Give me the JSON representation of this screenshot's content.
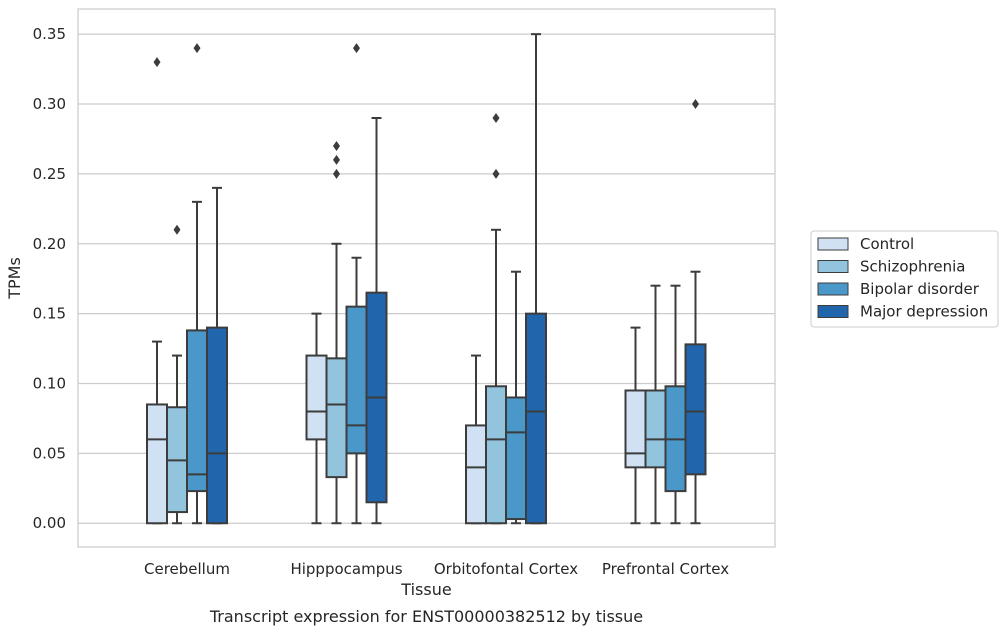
{
  "caption": "Transcript expression for ENST00000382512 by tissue",
  "chart_data": {
    "type": "box",
    "xlabel": "Tissue",
    "ylabel": "TPMs",
    "ylim": [
      -0.017,
      0.368
    ],
    "yticks": [
      0.0,
      0.05,
      0.1,
      0.15,
      0.2,
      0.25,
      0.3,
      0.35
    ],
    "ytick_labels": [
      "0.00",
      "0.05",
      "0.10",
      "0.15",
      "0.20",
      "0.25",
      "0.30",
      "0.35"
    ],
    "grid": "horizontal",
    "legend_position": "right",
    "categories": [
      "Cerebellum",
      "Hipppocampus",
      "Orbitofontal Cortex",
      "Prefrontal Cortex"
    ],
    "series": [
      {
        "name": "Control",
        "color": "#cfe1f2",
        "boxes": [
          {
            "whisker_low": 0.0,
            "q1": 0.0,
            "median": 0.06,
            "q3": 0.085,
            "whisker_high": 0.13,
            "outliers": [
              0.33
            ]
          },
          {
            "whisker_low": 0.0,
            "q1": 0.06,
            "median": 0.08,
            "q3": 0.12,
            "whisker_high": 0.15,
            "outliers": []
          },
          {
            "whisker_low": 0.0,
            "q1": 0.0,
            "median": 0.04,
            "q3": 0.07,
            "whisker_high": 0.12,
            "outliers": []
          },
          {
            "whisker_low": 0.0,
            "q1": 0.04,
            "median": 0.05,
            "q3": 0.095,
            "whisker_high": 0.14,
            "outliers": []
          }
        ]
      },
      {
        "name": "Schizophrenia",
        "color": "#93c4de",
        "boxes": [
          {
            "whisker_low": 0.0,
            "q1": 0.008,
            "median": 0.045,
            "q3": 0.083,
            "whisker_high": 0.12,
            "outliers": [
              0.21
            ]
          },
          {
            "whisker_low": 0.0,
            "q1": 0.033,
            "median": 0.085,
            "q3": 0.118,
            "whisker_high": 0.2,
            "outliers": [
              0.25,
              0.26,
              0.27
            ]
          },
          {
            "whisker_low": 0.0,
            "q1": 0.0,
            "median": 0.06,
            "q3": 0.098,
            "whisker_high": 0.21,
            "outliers": [
              0.25,
              0.29
            ]
          },
          {
            "whisker_low": 0.0,
            "q1": 0.04,
            "median": 0.06,
            "q3": 0.095,
            "whisker_high": 0.17,
            "outliers": []
          }
        ]
      },
      {
        "name": "Bipolar disorder",
        "color": "#4a98c9",
        "boxes": [
          {
            "whisker_low": 0.0,
            "q1": 0.023,
            "median": 0.035,
            "q3": 0.138,
            "whisker_high": 0.23,
            "outliers": [
              0.34
            ]
          },
          {
            "whisker_low": 0.0,
            "q1": 0.05,
            "median": 0.07,
            "q3": 0.155,
            "whisker_high": 0.19,
            "outliers": [
              0.34
            ]
          },
          {
            "whisker_low": 0.0,
            "q1": 0.003,
            "median": 0.065,
            "q3": 0.09,
            "whisker_high": 0.18,
            "outliers": []
          },
          {
            "whisker_low": 0.0,
            "q1": 0.023,
            "median": 0.06,
            "q3": 0.098,
            "whisker_high": 0.17,
            "outliers": []
          }
        ]
      },
      {
        "name": "Major depression",
        "color": "#2166ac",
        "boxes": [
          {
            "whisker_low": 0.0,
            "q1": 0.0,
            "median": 0.05,
            "q3": 0.14,
            "whisker_high": 0.24,
            "outliers": []
          },
          {
            "whisker_low": 0.0,
            "q1": 0.015,
            "median": 0.09,
            "q3": 0.165,
            "whisker_high": 0.29,
            "outliers": []
          },
          {
            "whisker_low": 0.0,
            "q1": 0.0,
            "median": 0.08,
            "q3": 0.15,
            "whisker_high": 0.35,
            "outliers": []
          },
          {
            "whisker_low": 0.0,
            "q1": 0.035,
            "median": 0.08,
            "q3": 0.128,
            "whisker_high": 0.18,
            "outliers": [
              0.3
            ]
          }
        ]
      }
    ]
  }
}
